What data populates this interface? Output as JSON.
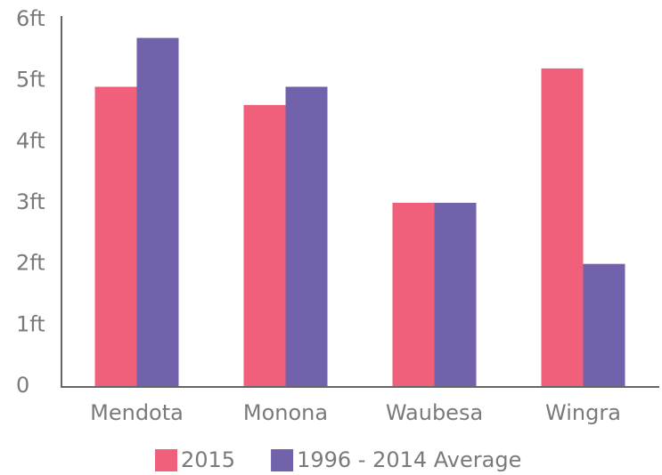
{
  "chart_data": {
    "type": "bar",
    "categories": [
      "Mendota",
      "Monona",
      "Waubesa",
      "Wingra"
    ],
    "series": [
      {
        "name": "2015",
        "color": "#f0607a",
        "values": [
          4.9,
          4.6,
          3.0,
          5.2
        ]
      },
      {
        "name": "1996 - 2014 Average",
        "color": "#7262ac",
        "values": [
          5.7,
          4.9,
          3.0,
          2.0
        ]
      }
    ],
    "ylim": [
      0,
      6
    ],
    "yticks": [
      0,
      {
        "value": 1,
        "label": "1ft"
      },
      {
        "value": 2,
        "label": "2ft"
      },
      {
        "value": 3,
        "label": "3ft"
      },
      {
        "value": 4,
        "label": "4ft"
      },
      {
        "value": 5,
        "label": "5ft"
      },
      {
        "value": 6,
        "label": "6ft"
      }
    ],
    "grid": false,
    "legend": "bottom"
  }
}
